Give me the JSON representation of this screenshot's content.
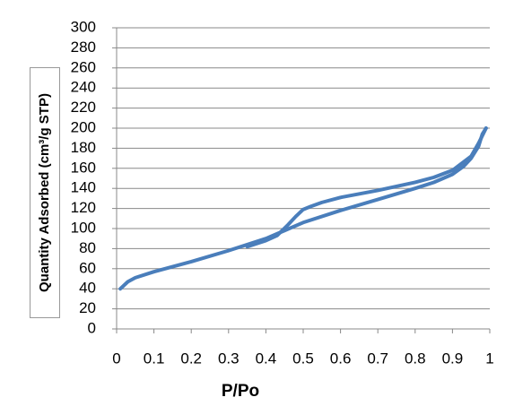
{
  "chart_data": {
    "type": "line",
    "x_label": "P/Po",
    "y_label": "Quantity Adsorbed (cm³/g STP)",
    "series": [
      {
        "color": "#4a7ebb",
        "x": [
          0.01,
          0.03,
          0.05,
          0.1,
          0.2,
          0.3,
          0.4,
          0.45,
          0.5,
          0.6,
          0.7,
          0.8,
          0.85,
          0.9,
          0.93,
          0.95,
          0.97,
          0.98,
          0.99
        ],
        "values": [
          40,
          47,
          51,
          57,
          67,
          78,
          90,
          98,
          106,
          118,
          129,
          140,
          146,
          154,
          162,
          170,
          182,
          194,
          200
        ]
      },
      {
        "color": "#4a7ebb",
        "x": [
          0.99,
          0.97,
          0.95,
          0.9,
          0.85,
          0.8,
          0.7,
          0.6,
          0.55,
          0.52,
          0.5,
          0.48,
          0.46,
          0.43,
          0.4,
          0.35
        ],
        "values": [
          200,
          185,
          172,
          158,
          151,
          146,
          138,
          131,
          126,
          122,
          119,
          112,
          104,
          93,
          88,
          82
        ]
      }
    ],
    "xlim": [
      0,
      1
    ],
    "xticks": [
      0,
      0.1,
      0.2,
      0.3,
      0.4,
      0.5,
      0.6,
      0.7,
      0.8,
      0.9,
      1
    ],
    "ylim": [
      0,
      300
    ],
    "yticks": [
      0,
      20,
      40,
      60,
      80,
      100,
      120,
      140,
      160,
      180,
      200,
      220,
      240,
      260,
      280,
      300
    ],
    "grid": true
  }
}
